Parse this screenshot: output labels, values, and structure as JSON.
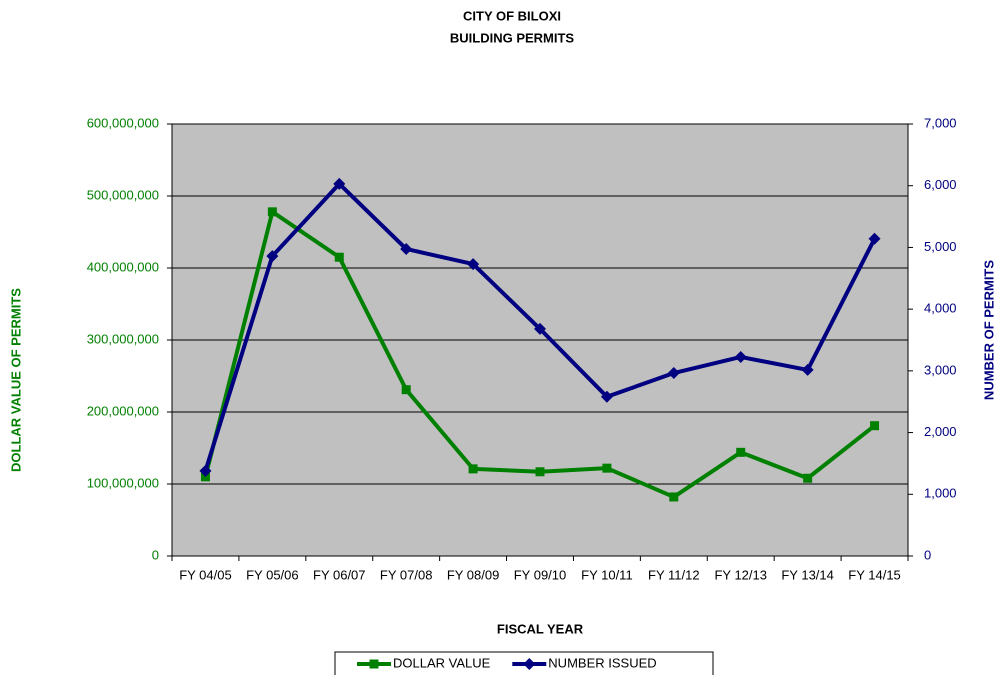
{
  "chart_data": {
    "type": "line",
    "title": "CITY OF BILOXI",
    "subtitle": "BUILDING PERMITS",
    "x_label": "FISCAL YEAR",
    "y_label": "DOLLAR VALUE OF PERMITS",
    "y2_label": "NUMBER OF PERMITS",
    "categories": [
      "FY 04/05",
      "FY 05/06",
      "FY 06/07",
      "FY 07/08",
      "FY 08/09",
      "FY 09/10",
      "FY 10/11",
      "FY 11/12",
      "FY 12/13",
      "FY 13/14",
      "FY 14/15"
    ],
    "series": [
      {
        "name": "DOLLAR VALUE",
        "color": "#008000",
        "marker": "square",
        "axis": "y",
        "values": [
          110000000,
          478000000,
          415000000,
          231000000,
          121000000,
          117000000,
          122000000,
          82000000,
          144000000,
          108000000,
          181000000
        ]
      },
      {
        "name": "NUMBER ISSUED",
        "color": "#000080",
        "marker": "diamond",
        "axis": "y2",
        "values": [
          1380,
          4860,
          6030,
          4975,
          4730,
          3680,
          2580,
          2965,
          3225,
          3015,
          5140
        ]
      }
    ],
    "ylim": [
      0,
      600000000
    ],
    "yticks": [
      0,
      {
        "value": 100000000,
        "label": "100,000,000"
      },
      {
        "value": 200000000,
        "label": "200,000,000"
      },
      {
        "value": 300000000,
        "label": "300,000,000"
      },
      {
        "value": 400000000,
        "label": "400,000,000"
      },
      {
        "value": 500000000,
        "label": "500,000,000"
      },
      {
        "value": 600000000,
        "label": "600,000,000"
      }
    ],
    "y2lim": [
      0,
      7000
    ],
    "y2ticks": [
      0,
      {
        "value": 1000,
        "label": "1,000"
      },
      {
        "value": 2000,
        "label": "2,000"
      },
      {
        "value": 3000,
        "label": "3,000"
      },
      {
        "value": 4000,
        "label": "4,000"
      },
      {
        "value": 5000,
        "label": "5,000"
      },
      {
        "value": 6000,
        "label": "6,000"
      },
      {
        "value": 7000,
        "label": "7,000"
      }
    ],
    "grid": true,
    "plot_background": "#c0c0c0",
    "legend": "bottom"
  }
}
